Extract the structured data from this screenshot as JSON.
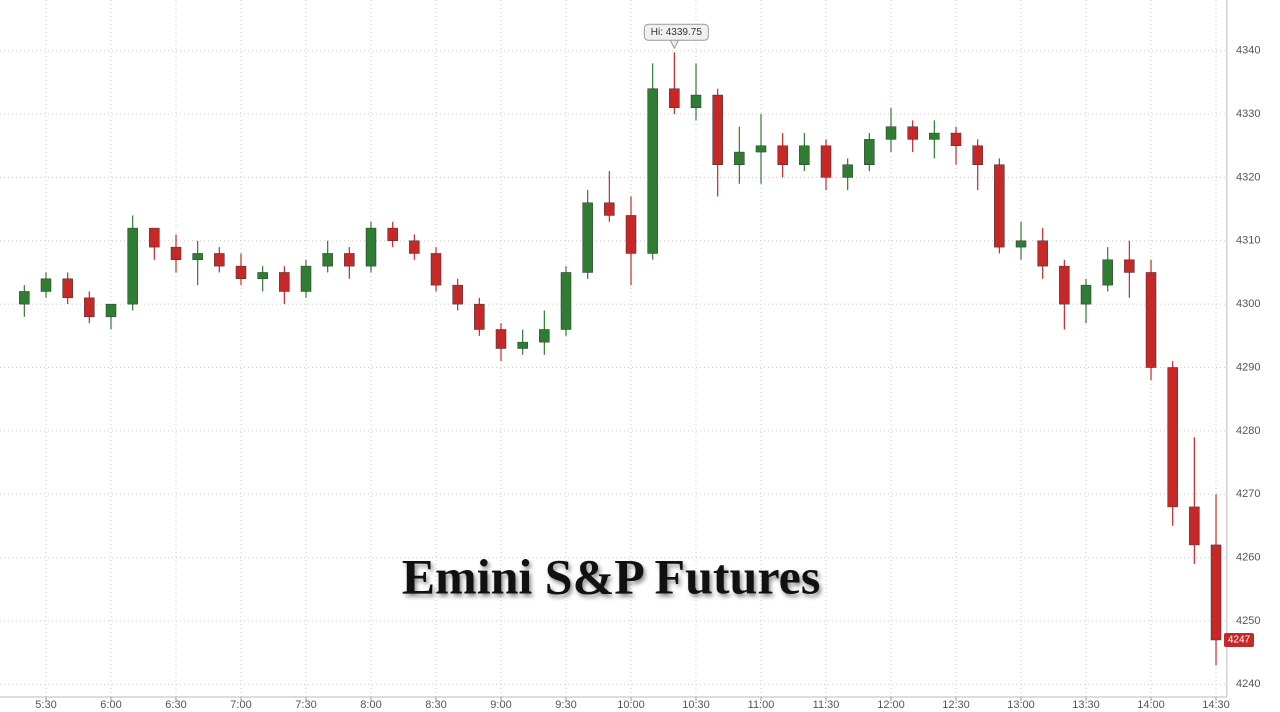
{
  "chart_data": {
    "type": "candlestick",
    "title": "Emini S&P Futures",
    "categories": [
      null,
      "5:30",
      null,
      null,
      "6:00",
      null,
      null,
      "6:30",
      null,
      null,
      "7:00",
      null,
      null,
      "7:30",
      null,
      null,
      "8:00",
      null,
      null,
      "8:30",
      null,
      null,
      "9:00",
      null,
      null,
      "9:30",
      null,
      null,
      "10:00",
      null,
      null,
      "10:30",
      null,
      null,
      "11:00",
      null,
      null,
      "11:30",
      null,
      null,
      "12:00",
      null,
      null,
      "12:30",
      null,
      null,
      "13:00",
      null,
      null,
      "13:30",
      null,
      null,
      "14:00",
      null,
      null,
      "14:30"
    ],
    "open": [
      4300,
      4302,
      4304,
      4301,
      4298,
      4300,
      4312,
      4309,
      4307,
      4308,
      4306,
      4304,
      4305,
      4302,
      4306,
      4308,
      4306,
      4312,
      4310,
      4308,
      4303,
      4300,
      4296,
      4293,
      4294,
      4296,
      4305,
      4316,
      4314,
      4308,
      4334,
      4331,
      4333,
      4322,
      4324,
      4325,
      4322,
      4325,
      4320,
      4322,
      4326,
      4328,
      4326,
      4327,
      4325,
      4322,
      4309,
      4310,
      4306,
      4300,
      4303,
      4307,
      4305,
      4290,
      4268,
      4262
    ],
    "high": [
      4303,
      4305,
      4305,
      4302,
      4300,
      4314,
      4312,
      4311,
      4310,
      4309,
      4308,
      4306,
      4306,
      4307,
      4310,
      4309,
      4313,
      4313,
      4311,
      4309,
      4304,
      4301,
      4297,
      4296,
      4299,
      4306,
      4318,
      4321,
      4317,
      4338,
      4339.75,
      4338,
      4334,
      4328,
      4330,
      4327,
      4327,
      4326,
      4323,
      4327,
      4331,
      4329,
      4329,
      4328,
      4326,
      4323,
      4313,
      4312,
      4307,
      4304,
      4309,
      4310,
      4307,
      4291,
      4279,
      4270
    ],
    "low": [
      4298,
      4301,
      4300,
      4297,
      4296,
      4299,
      4307,
      4305,
      4303,
      4305,
      4303,
      4302,
      4300,
      4301,
      4305,
      4304,
      4305,
      4309,
      4307,
      4302,
      4299,
      4295,
      4291,
      4292,
      4292,
      4295,
      4304,
      4313,
      4303,
      4307,
      4330,
      4329,
      4317,
      4319,
      4319,
      4320,
      4321,
      4318,
      4318,
      4321,
      4324,
      4324,
      4323,
      4322,
      4318,
      4308,
      4307,
      4304,
      4296,
      4297,
      4302,
      4301,
      4288,
      4265,
      4259,
      4243
    ],
    "close": [
      4302,
      4304,
      4301,
      4298,
      4300,
      4312,
      4309,
      4307,
      4308,
      4306,
      4304,
      4305,
      4302,
      4306,
      4308,
      4306,
      4312,
      4310,
      4308,
      4303,
      4300,
      4296,
      4293,
      4294,
      4296,
      4305,
      4316,
      4314,
      4308,
      4334,
      4331,
      4333,
      4322,
      4324,
      4325,
      4322,
      4325,
      4320,
      4322,
      4326,
      4328,
      4326,
      4327,
      4325,
      4322,
      4309,
      4310,
      4306,
      4300,
      4303,
      4307,
      4305,
      4290,
      4268,
      4262,
      4247
    ],
    "up_color": "#2e7d32",
    "down_color": "#c62828",
    "high_label": "Hi: 4339.75",
    "ylim": [
      4238,
      4348
    ],
    "yticks": [
      4240,
      4250,
      4260,
      4270,
      4280,
      4290,
      4300,
      4310,
      4320,
      4330,
      4340
    ],
    "grid": true
  }
}
